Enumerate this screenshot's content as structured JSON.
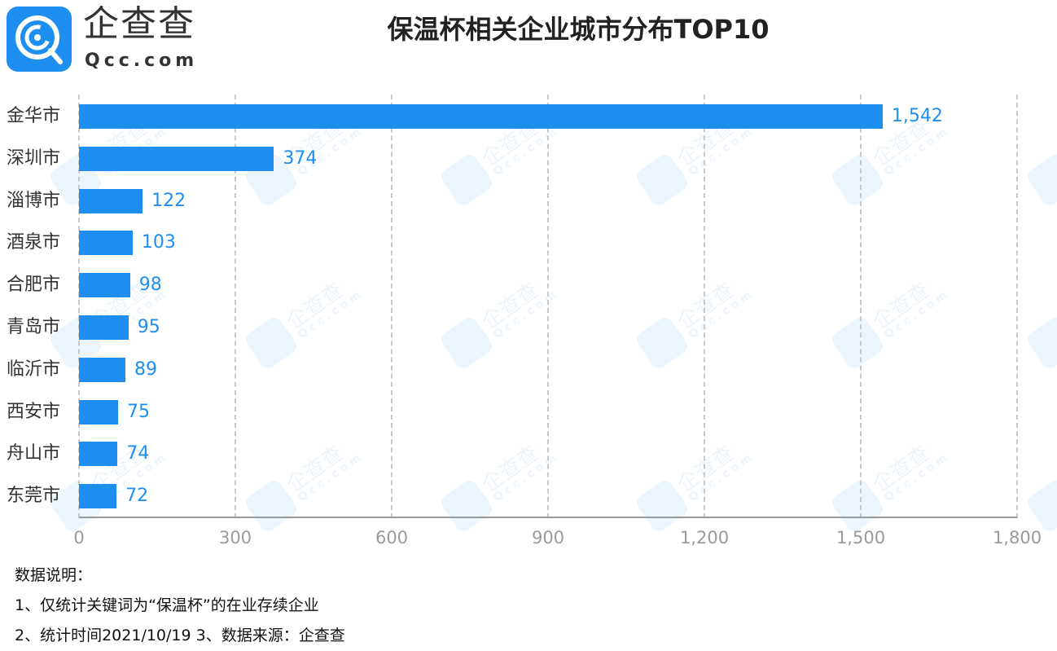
{
  "logo": {
    "cn": "企查查",
    "en": "Qcc.com",
    "icon": "qcc-logo-icon"
  },
  "watermark": {
    "cn": "企查查",
    "en": "Qcc.com"
  },
  "title": "保温杯相关企业城市分布TOP10",
  "colors": {
    "bar": "#1e8ff0",
    "value_label": "#1e8ff0",
    "axis_text": "#9a9a9a",
    "grid": "#c8c8c8"
  },
  "chart_data": {
    "type": "bar",
    "orientation": "horizontal",
    "title": "保温杯相关企业城市分布TOP10",
    "categories": [
      "金华市",
      "深圳市",
      "淄博市",
      "酒泉市",
      "合肥市",
      "青岛市",
      "临沂市",
      "西安市",
      "舟山市",
      "东莞市"
    ],
    "values": [
      1542,
      374,
      122,
      103,
      98,
      95,
      89,
      75,
      74,
      72
    ],
    "value_labels": [
      "1,542",
      "374",
      "122",
      "103",
      "98",
      "95",
      "89",
      "75",
      "74",
      "72"
    ],
    "xlabel": "",
    "ylabel": "",
    "xlim": [
      0,
      1800
    ],
    "x_ticks": [
      "0",
      "300",
      "600",
      "900",
      "1,200",
      "1,500",
      "1,800"
    ],
    "grid": "vertical dashed",
    "legend": "none"
  },
  "notes": {
    "heading": "数据说明：",
    "line1": "1、仅统计关键词为“保温杯”的在业存续企业",
    "line2": "2、统计时间2021/10/19   3、数据来源：企查查"
  }
}
